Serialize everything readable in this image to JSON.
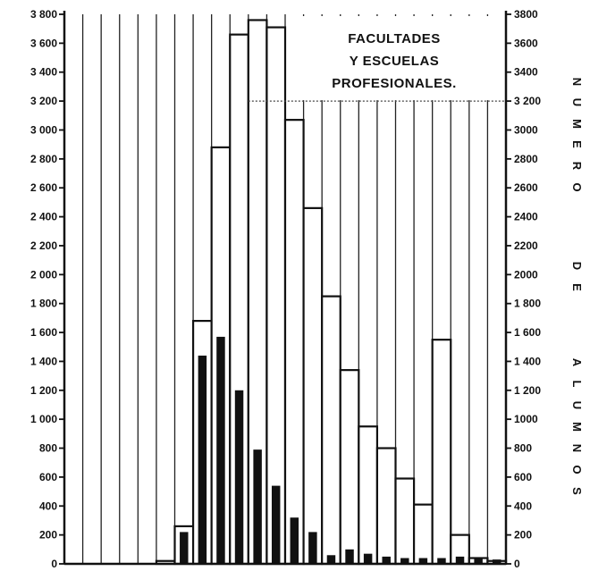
{
  "chart_data": {
    "type": "bar",
    "title": [
      "FACULTADES",
      "Y ESCUELAS",
      "PROFESIONALES."
    ],
    "ylabel_right": [
      "N",
      "U",
      "M",
      "E",
      "R",
      "O",
      "D",
      "E",
      "A",
      "L",
      "U",
      "M",
      "N",
      "O",
      "S"
    ],
    "ylim": [
      0,
      3800
    ],
    "yticks_left": [
      "0",
      "200",
      "400",
      "600",
      "800",
      "1 000",
      "1 200",
      "1 400",
      "1 600",
      "1 800",
      "2 000",
      "2 200",
      "2 400",
      "2 600",
      "2 800",
      "3 000",
      "3 200",
      "3 400",
      "3 600",
      "3 800"
    ],
    "yticks_right": [
      "0",
      "200",
      "400",
      "600",
      "800",
      "1000",
      "1 200",
      "1 400",
      "1 600",
      "1 800",
      "2000",
      "2200",
      "2400",
      "2600",
      "2800",
      "3000",
      "3 200",
      "3400",
      "3600",
      "3800"
    ],
    "grid": "vertical",
    "series": [
      {
        "style": "outline",
        "values": [
          0,
          0,
          0,
          0,
          0,
          20,
          260,
          1680,
          2880,
          3660,
          3760,
          3710,
          3070,
          2460,
          1850,
          1340,
          950,
          800,
          590,
          410,
          1550,
          200,
          40,
          20
        ]
      },
      {
        "style": "filled",
        "values": [
          0,
          0,
          0,
          0,
          0,
          0,
          220,
          1440,
          1570,
          1200,
          790,
          540,
          320,
          220,
          60,
          100,
          70,
          50,
          40,
          40,
          40,
          50,
          40,
          30
        ]
      }
    ]
  }
}
